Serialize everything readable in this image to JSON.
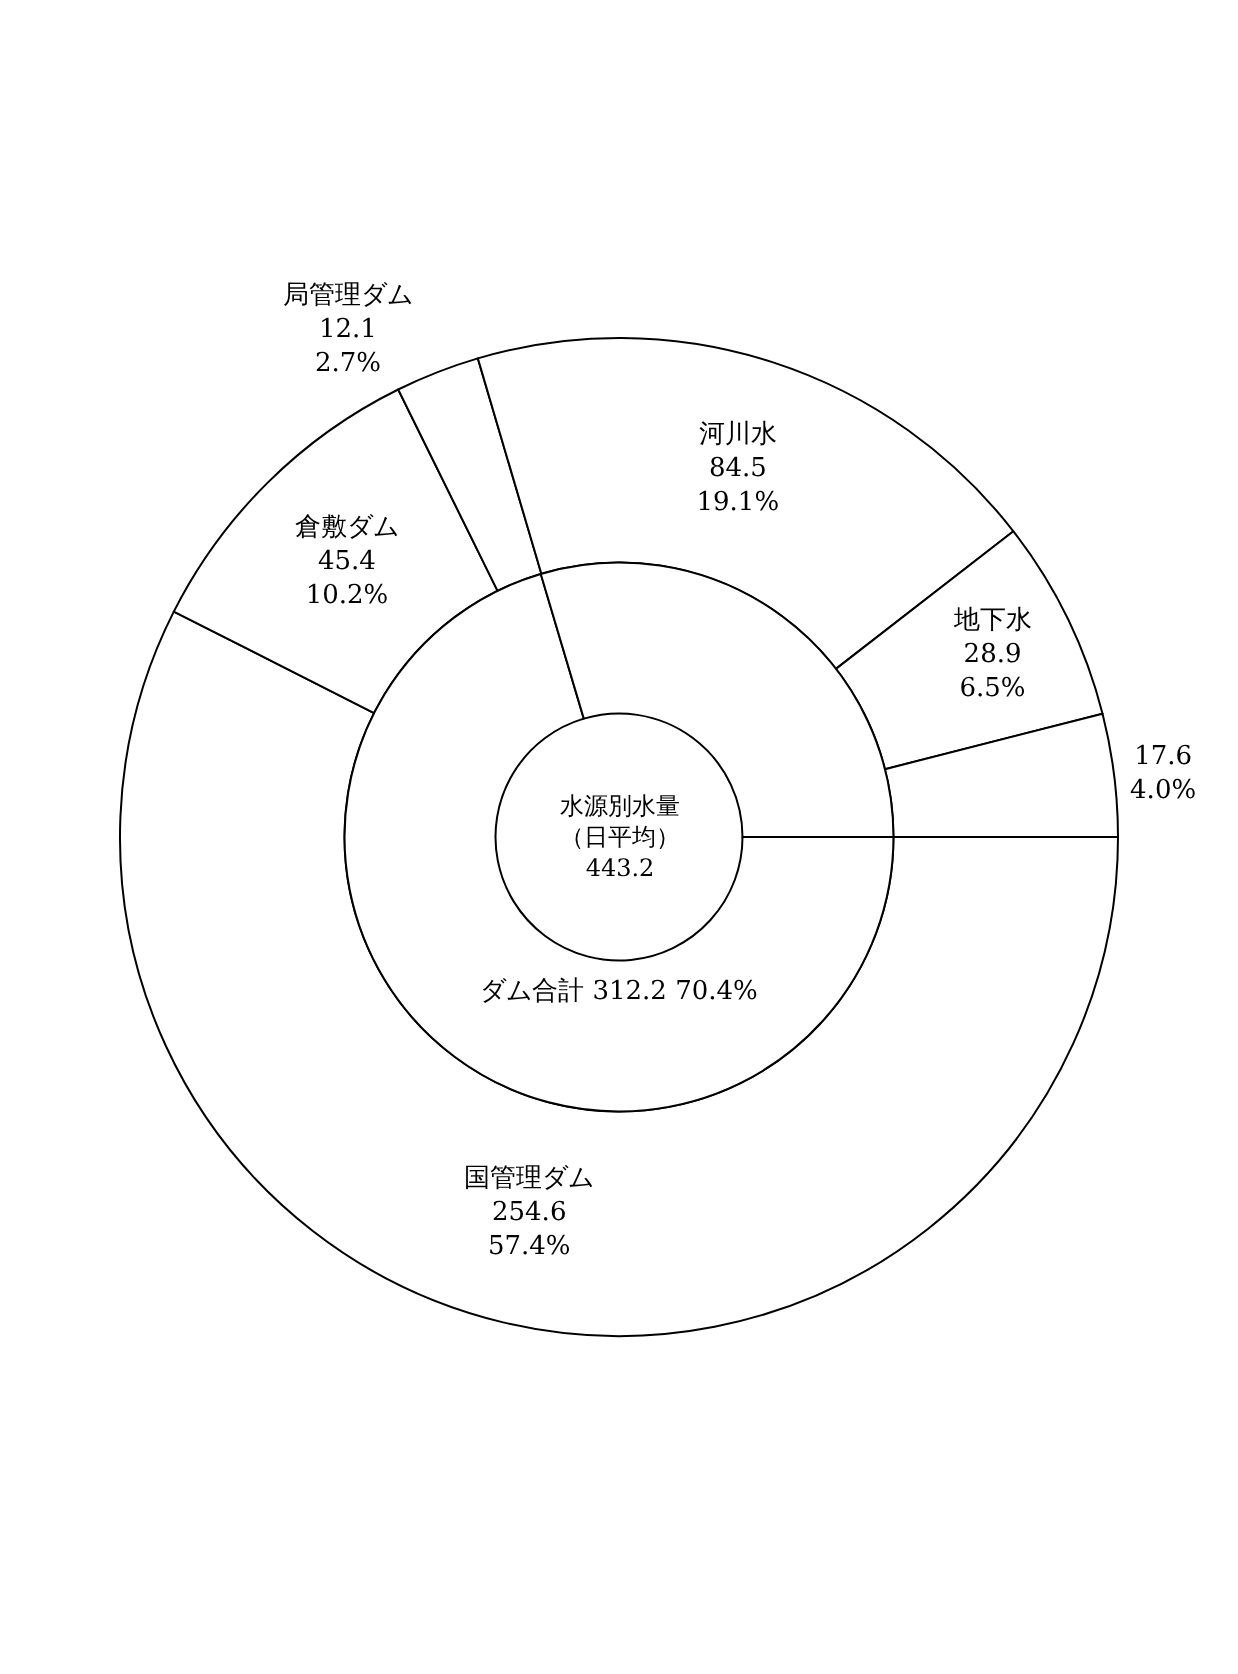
{
  "chart_data": {
    "type": "donut",
    "title": "水源別水量",
    "subtitle": "（日平均）",
    "annotations": [
      "443.2"
    ],
    "categories": [
      "国管理ダム",
      "倉敷ダム",
      "局管理ダム",
      "河川水",
      "地下水",
      null
    ],
    "series": [
      {
        "values": [
          254.6,
          45.4,
          12.1,
          84.5,
          28.9,
          17.6
        ],
        "value_labels": [
          "254.6\n57.4%",
          "45.4\n10.2%",
          "12.1\n2.7%",
          "84.5\n19.1%",
          "28.9\n6.5%",
          "17.6\n4.0%"
        ],
        "colors": [
          "#ffffff",
          "#ffffff",
          "#ffffff",
          "#ffffff",
          "#ffffff",
          "#ffffff"
        ]
      },
      {
        "name": "ダム合計",
        "values": [
          70.4,
          null,
          null,
          29.6,
          null,
          null
        ],
        "value_labels": [
          "312.2 70.4%",
          null,
          null,
          null,
          null,
          null
        ],
        "colors": [
          "#ffffff",
          null,
          null,
          "#ffffff",
          null,
          null
        ]
      }
    ]
  }
}
